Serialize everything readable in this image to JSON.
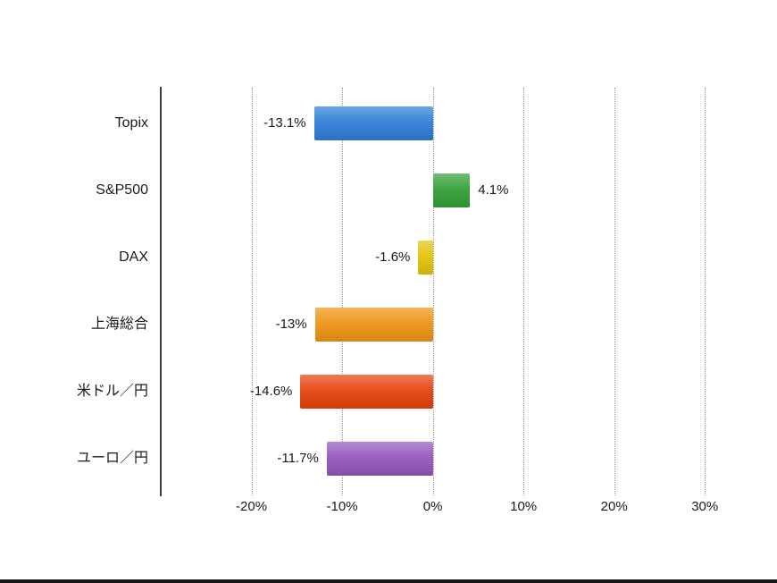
{
  "chart_data": {
    "type": "bar",
    "orientation": "horizontal",
    "title": "",
    "categories": [
      "Topix",
      "S&P500",
      "DAX",
      "上海総合",
      "米ドル／円",
      "ユーロ／円"
    ],
    "values": [
      -13.1,
      4.1,
      -1.6,
      -13,
      -14.6,
      -11.7
    ],
    "value_labels": [
      "-13.1%",
      "4.1%",
      "-1.6%",
      "-13%",
      "-14.6%",
      "-11.7%"
    ],
    "bar_colors": [
      "#2e7fd8",
      "#33a037",
      "#e4c40b",
      "#f09414",
      "#e6430d",
      "#9657bb"
    ],
    "x_ticks": [
      {
        "value": -20,
        "label": "-20%"
      },
      {
        "value": -10,
        "label": "-10%"
      },
      {
        "value": 0,
        "label": "0%"
      },
      {
        "value": 10,
        "label": "10%"
      },
      {
        "value": 20,
        "label": "20%"
      },
      {
        "value": 30,
        "label": "30%"
      }
    ],
    "xlim": [
      -30,
      35
    ],
    "grid": "vertical-dotted",
    "legend": "none"
  },
  "colors": {
    "background": "#ffffff",
    "axis": "#3c3c3c",
    "gridline": "#9a9a9a",
    "text": "#1a1a1a",
    "bottom_bar": "#161616"
  }
}
